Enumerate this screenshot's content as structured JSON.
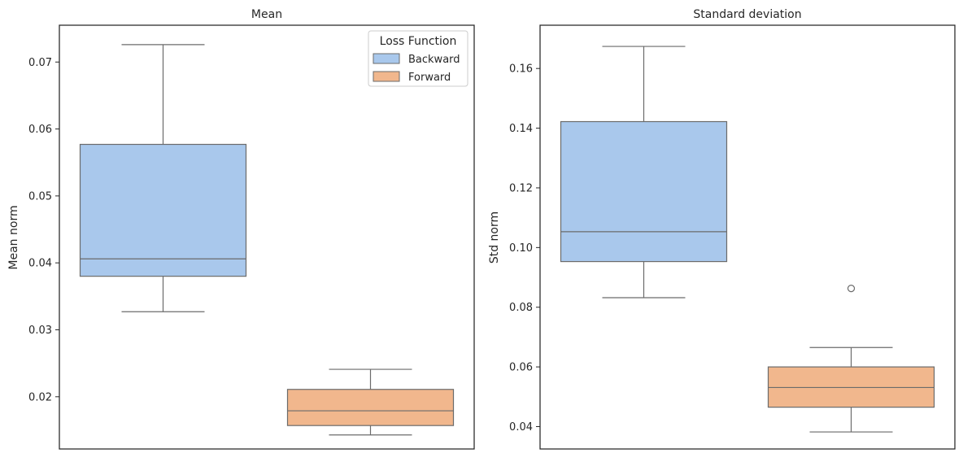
{
  "chart_data": [
    {
      "type": "box",
      "title": "Mean",
      "ylabel": "Mean norm",
      "xlabel": "",
      "ylim": [
        0.0122,
        0.0755
      ],
      "yticks": [
        0.02,
        0.03,
        0.04,
        0.05,
        0.06,
        0.07
      ],
      "ytick_labels": [
        "0.02",
        "0.03",
        "0.04",
        "0.05",
        "0.06",
        "0.07"
      ],
      "grid": false,
      "legend": {
        "title": "Loss Function",
        "placement": "top-right",
        "entries": [
          "Backward",
          "Forward"
        ]
      },
      "series": [
        {
          "name": "Backward",
          "color": "#a9c8ec",
          "whisker_low": 0.0327,
          "q1": 0.038,
          "median": 0.0406,
          "q3": 0.0577,
          "whisker_high": 0.0726,
          "outliers": []
        },
        {
          "name": "Forward",
          "color": "#f1b78d",
          "whisker_low": 0.0143,
          "q1": 0.0157,
          "median": 0.0179,
          "q3": 0.0211,
          "whisker_high": 0.0241,
          "outliers": []
        }
      ]
    },
    {
      "type": "box",
      "title": "Standard deviation",
      "ylabel": "Std norm",
      "xlabel": "",
      "ylim": [
        0.0325,
        0.1745
      ],
      "yticks": [
        0.04,
        0.06,
        0.08,
        0.1,
        0.12,
        0.14,
        0.16
      ],
      "ytick_labels": [
        "0.04",
        "0.06",
        "0.08",
        "0.10",
        "0.12",
        "0.14",
        "0.16"
      ],
      "grid": false,
      "series": [
        {
          "name": "Backward",
          "color": "#a9c8ec",
          "whisker_low": 0.0832,
          "q1": 0.0953,
          "median": 0.1053,
          "q3": 0.1422,
          "whisker_high": 0.1674,
          "outliers": []
        },
        {
          "name": "Forward",
          "color": "#f1b78d",
          "whisker_low": 0.0382,
          "q1": 0.0465,
          "median": 0.0531,
          "q3": 0.06,
          "whisker_high": 0.0665,
          "outliers": [
            0.0863
          ]
        }
      ]
    }
  ]
}
